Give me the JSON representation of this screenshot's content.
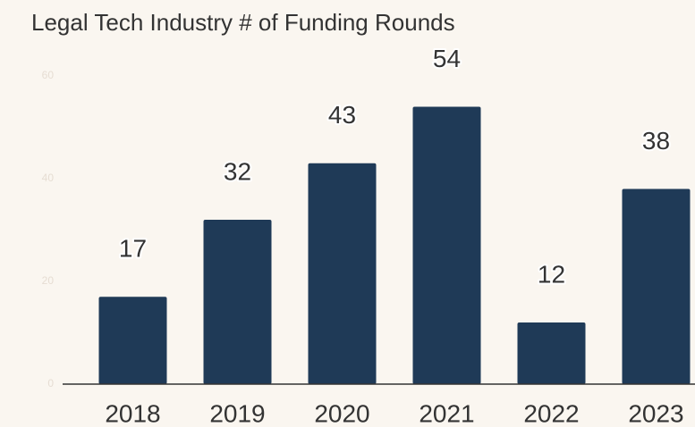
{
  "chart_data": {
    "type": "bar",
    "title": "Legal Tech Industry # of Funding Rounds",
    "categories": [
      "2018",
      "2019",
      "2020",
      "2021",
      "2022",
      "2023"
    ],
    "values": [
      17,
      32,
      43,
      54,
      12,
      38
    ],
    "color": "#1f3a57",
    "ylim": [
      0,
      60
    ],
    "yticks": [
      0,
      20,
      40,
      60
    ],
    "grid": false
  }
}
